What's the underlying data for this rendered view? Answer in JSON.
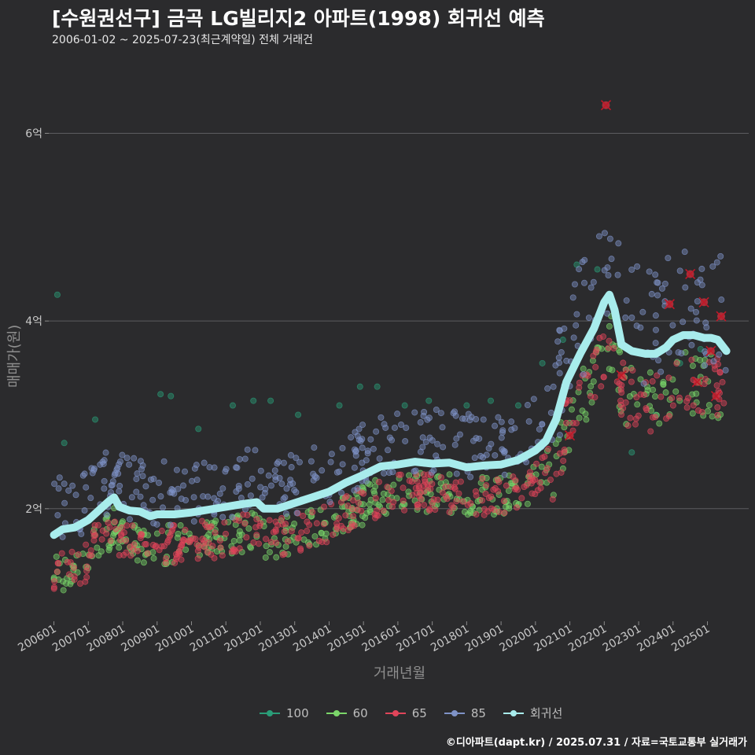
{
  "header": {
    "title": "[수원권선구] 금곡 LG빌리지2 아파트(1998) 회귀선 예측",
    "subtitle": "2006-01-02 ~ 2025-07-23(최근계약일) 전체 거래건"
  },
  "footer": {
    "credit": "©디아파트(dapt.kr) / 2025.07.31 / 자료=국토교통부 실거래가"
  },
  "chart_data": {
    "type": "scatter",
    "title": "[수원권선구] 금곡 LG빌리지2 아파트(1998) 회귀선 예측",
    "xlabel": "거래년월",
    "ylabel": "매매가(원)",
    "xlim": [
      2005.85,
      2026.2
    ],
    "ylim": [
      0.8,
      6.75
    ],
    "y_ticks": [
      {
        "value": 2,
        "label": "2억"
      },
      {
        "value": 4,
        "label": "4억"
      },
      {
        "value": 6,
        "label": "6억"
      }
    ],
    "x_ticks": [
      {
        "value": 2006,
        "label": "200601"
      },
      {
        "value": 2007,
        "label": "200701"
      },
      {
        "value": 2008,
        "label": "200801"
      },
      {
        "value": 2009,
        "label": "200901"
      },
      {
        "value": 2010,
        "label": "201001"
      },
      {
        "value": 2011,
        "label": "201101"
      },
      {
        "value": 2012,
        "label": "201201"
      },
      {
        "value": 2013,
        "label": "201301"
      },
      {
        "value": 2014,
        "label": "201401"
      },
      {
        "value": 2015,
        "label": "201501"
      },
      {
        "value": 2016,
        "label": "201601"
      },
      {
        "value": 2017,
        "label": "201701"
      },
      {
        "value": 2018,
        "label": "201801"
      },
      {
        "value": 2019,
        "label": "201901"
      },
      {
        "value": 2020,
        "label": "202001"
      },
      {
        "value": 2021,
        "label": "202101"
      },
      {
        "value": 2022,
        "label": "202201"
      },
      {
        "value": 2023,
        "label": "202301"
      },
      {
        "value": 2024,
        "label": "202401"
      },
      {
        "value": 2025,
        "label": "202501"
      }
    ],
    "legend": [
      {
        "label": "100",
        "color": "#2a9d78"
      },
      {
        "label": "60",
        "color": "#7bd66a"
      },
      {
        "label": "65",
        "color": "#e0455a"
      },
      {
        "label": "85",
        "color": "#7f93c7"
      },
      {
        "label": "회귀선",
        "color": "#a8ecec"
      }
    ],
    "regression": [
      [
        2006.0,
        1.72
      ],
      [
        2006.25,
        1.78
      ],
      [
        2006.6,
        1.8
      ],
      [
        2007.0,
        1.88
      ],
      [
        2007.3,
        1.98
      ],
      [
        2007.6,
        2.08
      ],
      [
        2007.75,
        2.12
      ],
      [
        2007.9,
        2.02
      ],
      [
        2008.2,
        1.98
      ],
      [
        2008.5,
        1.97
      ],
      [
        2008.8,
        1.92
      ],
      [
        2009.0,
        1.94
      ],
      [
        2009.5,
        1.94
      ],
      [
        2010.0,
        1.96
      ],
      [
        2010.5,
        1.99
      ],
      [
        2011.0,
        2.02
      ],
      [
        2011.5,
        2.05
      ],
      [
        2011.9,
        2.07
      ],
      [
        2012.1,
        2.0
      ],
      [
        2012.5,
        2.0
      ],
      [
        2013.0,
        2.06
      ],
      [
        2013.5,
        2.12
      ],
      [
        2014.0,
        2.18
      ],
      [
        2014.5,
        2.28
      ],
      [
        2015.0,
        2.36
      ],
      [
        2015.5,
        2.45
      ],
      [
        2016.0,
        2.47
      ],
      [
        2016.5,
        2.5
      ],
      [
        2017.0,
        2.48
      ],
      [
        2017.5,
        2.49
      ],
      [
        2018.0,
        2.44
      ],
      [
        2018.5,
        2.46
      ],
      [
        2019.0,
        2.47
      ],
      [
        2019.5,
        2.52
      ],
      [
        2020.0,
        2.62
      ],
      [
        2020.3,
        2.72
      ],
      [
        2020.6,
        2.95
      ],
      [
        2020.9,
        3.35
      ],
      [
        2021.3,
        3.65
      ],
      [
        2021.7,
        3.92
      ],
      [
        2022.0,
        4.2
      ],
      [
        2022.15,
        4.28
      ],
      [
        2022.3,
        4.12
      ],
      [
        2022.5,
        3.75
      ],
      [
        2022.8,
        3.68
      ],
      [
        2023.2,
        3.65
      ],
      [
        2023.5,
        3.65
      ],
      [
        2023.8,
        3.72
      ],
      [
        2024.0,
        3.8
      ],
      [
        2024.3,
        3.85
      ],
      [
        2024.6,
        3.85
      ],
      [
        2024.9,
        3.82
      ],
      [
        2025.1,
        3.82
      ],
      [
        2025.3,
        3.8
      ],
      [
        2025.55,
        3.68
      ]
    ],
    "outliers": [
      {
        "x": 2022.05,
        "y": 6.3
      },
      {
        "x": 2023.9,
        "y": 4.18
      },
      {
        "x": 2024.5,
        "y": 4.5
      },
      {
        "x": 2024.9,
        "y": 4.2
      },
      {
        "x": 2025.4,
        "y": 4.05
      },
      {
        "x": 2025.1,
        "y": 3.68
      },
      {
        "x": 2024.7,
        "y": 3.35
      },
      {
        "x": 2025.25,
        "y": 3.2
      },
      {
        "x": 2021.0,
        "y": 2.78
      },
      {
        "x": 2022.5,
        "y": 3.42
      }
    ],
    "series": [
      {
        "name": "100",
        "color": "#2a9d78",
        "points": [
          [
            2006.1,
            4.28
          ],
          [
            2006.3,
            2.7
          ],
          [
            2007.2,
            2.95
          ],
          [
            2009.1,
            3.22
          ],
          [
            2009.4,
            3.2
          ],
          [
            2010.2,
            2.85
          ],
          [
            2011.2,
            3.1
          ],
          [
            2011.8,
            3.15
          ],
          [
            2012.3,
            3.15
          ],
          [
            2013.1,
            3.0
          ],
          [
            2014.3,
            3.1
          ],
          [
            2014.9,
            3.3
          ],
          [
            2015.4,
            3.3
          ],
          [
            2016.2,
            3.1
          ],
          [
            2016.9,
            3.15
          ],
          [
            2018.0,
            3.1
          ],
          [
            2018.7,
            3.15
          ],
          [
            2019.5,
            3.1
          ],
          [
            2020.2,
            3.55
          ],
          [
            2020.8,
            3.8
          ],
          [
            2021.2,
            4.6
          ],
          [
            2021.8,
            4.55
          ],
          [
            2022.8,
            2.6
          ],
          [
            2023.5,
            3.0
          ],
          [
            2024.2,
            3.55
          ],
          [
            2024.8,
            3.7
          ]
        ]
      },
      {
        "name": "60",
        "color": "#7bd66a",
        "generate": {
          "base": 1.2,
          "spread": 0.22,
          "seed": 7
        }
      },
      {
        "name": "65",
        "color": "#e0455a",
        "generate": {
          "base": 1.28,
          "spread": 0.26,
          "seed": 19
        }
      },
      {
        "name": "85",
        "color": "#7f93c7",
        "generate": {
          "base": 2.05,
          "spread": 0.32,
          "seed": 31
        }
      }
    ]
  }
}
